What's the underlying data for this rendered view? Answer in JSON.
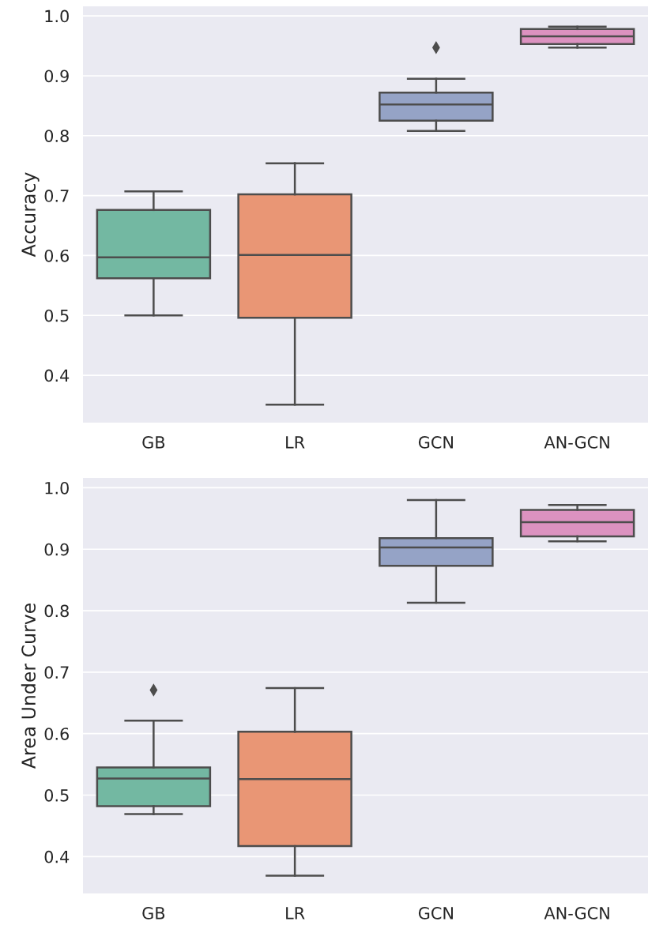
{
  "chart_data": [
    {
      "type": "box",
      "ylabel": "Accuracy",
      "categories": [
        "GB",
        "LR",
        "GCN",
        "AN-GCN"
      ],
      "colors": [
        "#73b8a2",
        "#e99675",
        "#95a3c6",
        "#dc92c0"
      ],
      "ylim": [
        0.321,
        1.016
      ],
      "yticks": [
        0.4,
        0.5,
        0.6,
        0.7,
        0.8,
        0.9,
        {
          "value": 1,
          "label": "1.0"
        }
      ],
      "grid": "y",
      "boxes": [
        {
          "low": 0.5,
          "q1": 0.562,
          "median": 0.597,
          "q3": 0.676,
          "high": 0.707
        },
        {
          "low": 0.351,
          "q1": 0.496,
          "median": 0.601,
          "q3": 0.702,
          "high": 0.754
        },
        {
          "low": 0.808,
          "q1": 0.825,
          "median": 0.852,
          "q3": 0.872,
          "high": 0.895,
          "outliers": [
            0.947
          ]
        },
        {
          "low": 0.947,
          "q1": 0.953,
          "median": 0.966,
          "q3": 0.978,
          "high": 0.982
        }
      ]
    },
    {
      "type": "box",
      "ylabel": "Area Under Curve",
      "categories": [
        "GB",
        "LR",
        "GCN",
        "AN-GCN"
      ],
      "colors": [
        "#73b8a2",
        "#e99675",
        "#95a3c6",
        "#dc92c0"
      ],
      "ylim": [
        0.34,
        1.016
      ],
      "yticks": [
        0.4,
        0.5,
        0.6,
        0.7,
        0.8,
        0.9,
        {
          "value": 1,
          "label": "1.0"
        }
      ],
      "grid": "y",
      "boxes": [
        {
          "low": 0.469,
          "q1": 0.482,
          "median": 0.527,
          "q3": 0.545,
          "high": 0.621,
          "outliers": [
            0.671
          ]
        },
        {
          "low": 0.369,
          "q1": 0.417,
          "median": 0.526,
          "q3": 0.603,
          "high": 0.674
        },
        {
          "low": 0.813,
          "q1": 0.873,
          "median": 0.903,
          "q3": 0.918,
          "high": 0.98
        },
        {
          "low": 0.913,
          "q1": 0.921,
          "median": 0.944,
          "q3": 0.964,
          "high": 0.972
        }
      ]
    }
  ]
}
